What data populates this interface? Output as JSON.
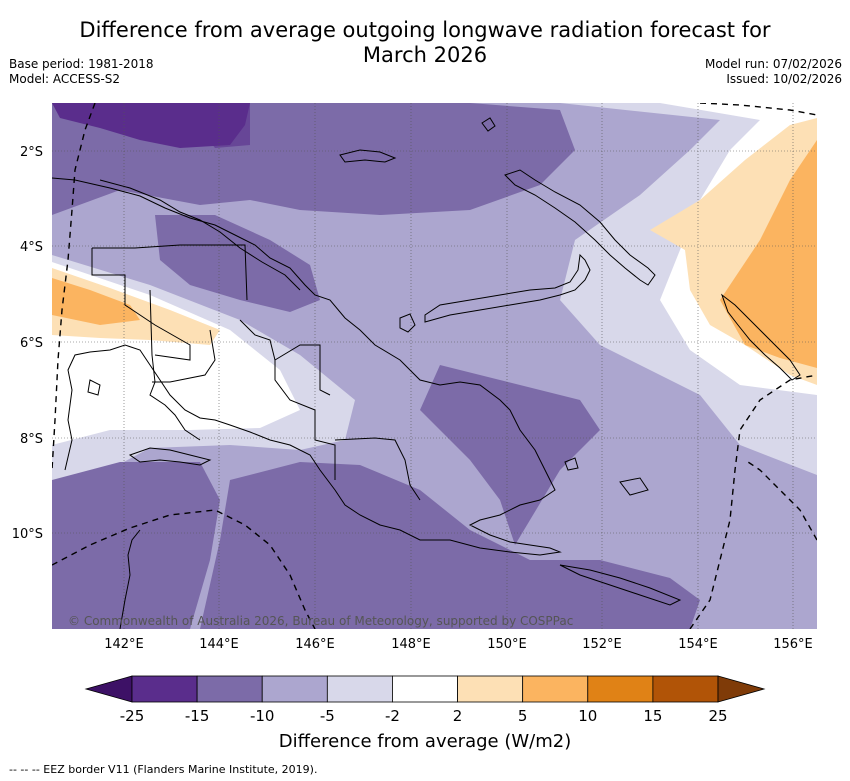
{
  "header": {
    "title_line1": "Difference from average outgoing longwave radiation forecast for",
    "title_line2": "March 2026",
    "base_period": "Base period: 1981-2018",
    "model": "Model: ACCESS-S2",
    "model_run": "Model run: 07/02/2026",
    "issued": "Issued: 10/02/2026"
  },
  "map": {
    "lat_labels": [
      "2°S",
      "4°S",
      "6°S",
      "8°S",
      "10°S"
    ],
    "lon_labels": [
      "142°E",
      "144°E",
      "146°E",
      "148°E",
      "150°E",
      "152°E",
      "154°E",
      "156°E"
    ],
    "copyright": "© Commonwealth of Australia 2026, Bureau of Meteorology, supported by COSPPac"
  },
  "colorbar": {
    "title": "Difference from average (W/m2)",
    "ticks": [
      "-25",
      "-15",
      "-10",
      "-5",
      "-2",
      "2",
      "5",
      "10",
      "15",
      "25"
    ],
    "colors": [
      "#3d1166",
      "#5a2d8c",
      "#7c6ba8",
      "#aca6cf",
      "#d8d8ea",
      "#ffffff",
      "#fde0b5",
      "#fbb460",
      "#e08216",
      "#b15407",
      "#7f3b08"
    ]
  },
  "footer": {
    "legend_note": "--  --  -- EEZ border V11 (Flanders Marine Institute, 2019)."
  }
}
